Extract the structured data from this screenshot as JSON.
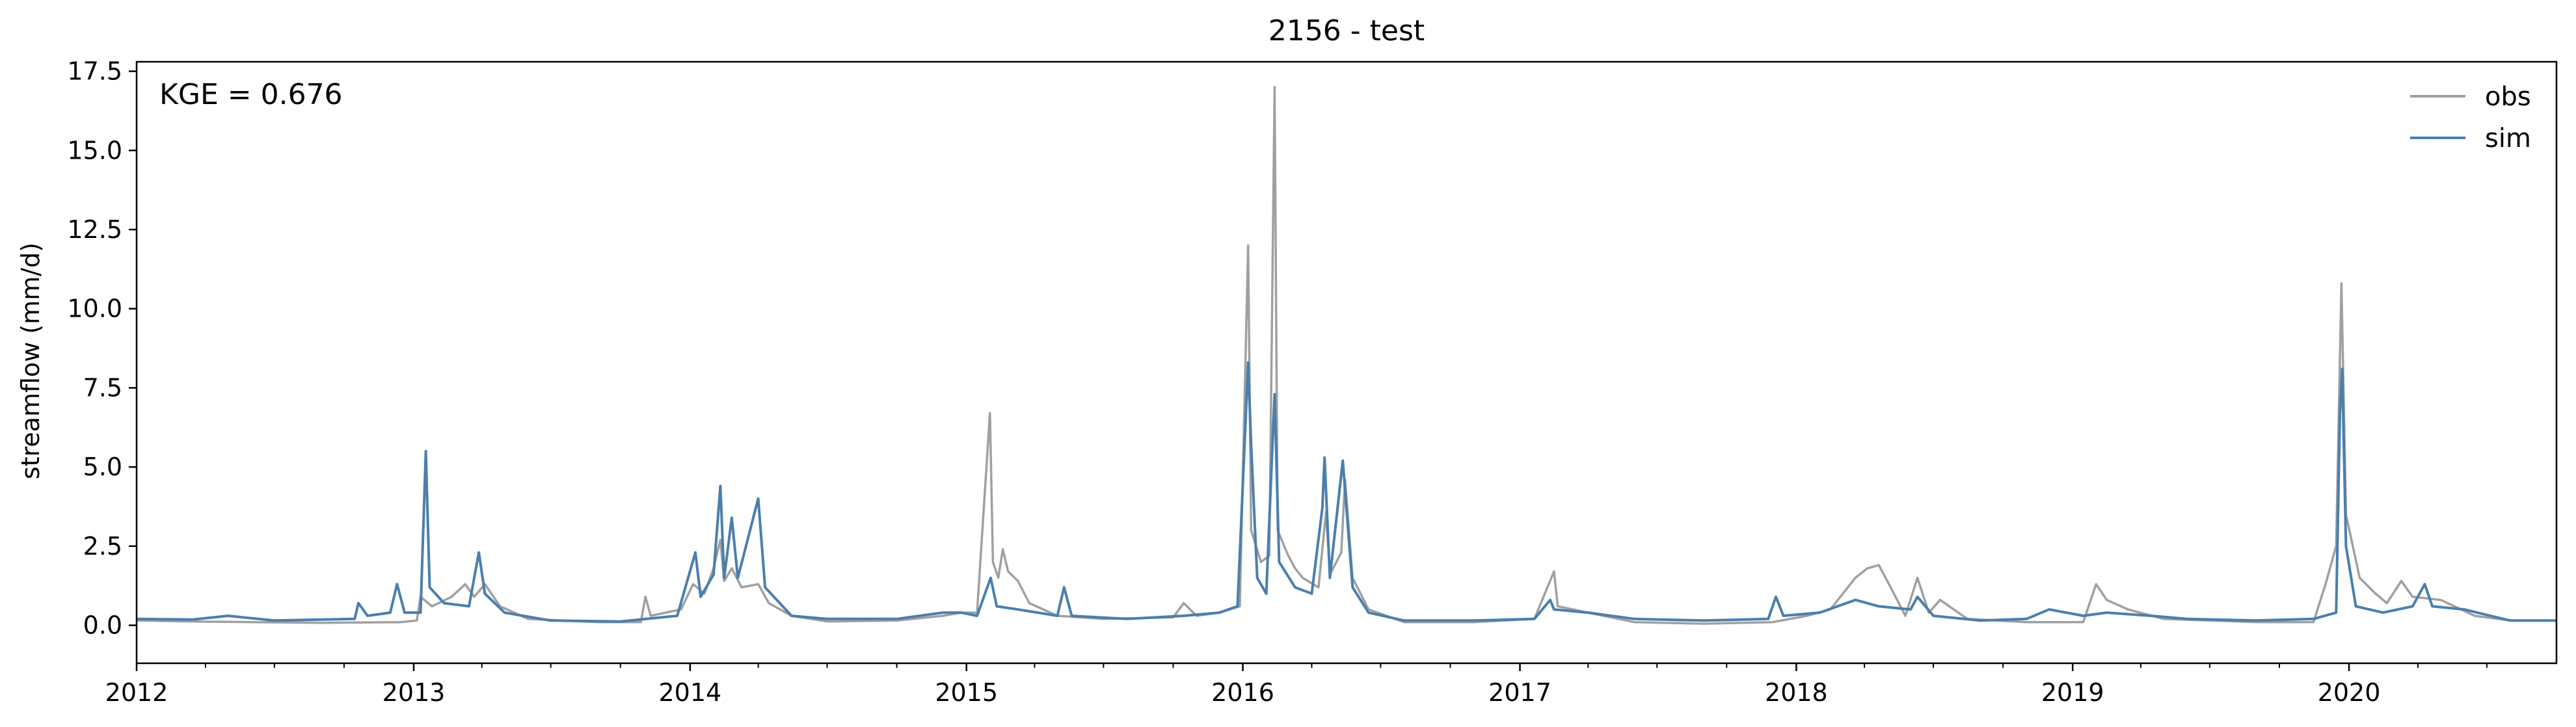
{
  "chart_data": {
    "type": "line",
    "title": "2156 - test",
    "xlabel": "",
    "ylabel": "streamflow (mm/d)",
    "annotation": "KGE = 0.676",
    "xlim": [
      "2012-01-01",
      "2020-10-01"
    ],
    "ylim": [
      -1.2,
      17.8
    ],
    "yticks": [
      0.0,
      2.5,
      5.0,
      7.5,
      10.0,
      12.5,
      15.0,
      17.5
    ],
    "ytick_labels": [
      "0.0",
      "2.5",
      "5.0",
      "7.5",
      "10.0",
      "12.5",
      "15.0",
      "17.5"
    ],
    "xticks": [
      "2012-01-01",
      "2013-01-01",
      "2014-01-01",
      "2015-01-01",
      "2016-01-01",
      "2017-01-01",
      "2018-01-01",
      "2019-01-01",
      "2020-01-01"
    ],
    "xtick_labels": [
      "2012",
      "2013",
      "2014",
      "2015",
      "2016",
      "2017",
      "2018",
      "2019",
      "2020"
    ],
    "grid": false,
    "legend": {
      "position": "top-right",
      "entries": [
        "obs",
        "sim"
      ]
    },
    "series": [
      {
        "name": "obs",
        "color": "#a0a0a0",
        "points": [
          [
            "2012-01-01",
            0.15
          ],
          [
            "2012-03-15",
            0.12
          ],
          [
            "2012-06-01",
            0.1
          ],
          [
            "2012-09-01",
            0.08
          ],
          [
            "2012-12-15",
            0.1
          ],
          [
            "2013-01-05",
            0.15
          ],
          [
            "2013-01-10",
            0.9
          ],
          [
            "2013-01-25",
            0.6
          ],
          [
            "2013-02-20",
            0.9
          ],
          [
            "2013-03-10",
            1.3
          ],
          [
            "2013-03-22",
            0.9
          ],
          [
            "2013-04-05",
            1.3
          ],
          [
            "2013-04-25",
            0.6
          ],
          [
            "2013-06-01",
            0.2
          ],
          [
            "2013-09-01",
            0.1
          ],
          [
            "2013-10-28",
            0.1
          ],
          [
            "2013-11-03",
            0.9
          ],
          [
            "2013-11-10",
            0.3
          ],
          [
            "2013-12-20",
            0.5
          ],
          [
            "2014-01-05",
            1.3
          ],
          [
            "2014-01-20",
            1.0
          ],
          [
            "2014-02-01",
            1.8
          ],
          [
            "2014-02-10",
            2.7
          ],
          [
            "2014-02-15",
            1.4
          ],
          [
            "2014-02-25",
            1.8
          ],
          [
            "2014-03-10",
            1.2
          ],
          [
            "2014-04-01",
            1.3
          ],
          [
            "2014-04-15",
            0.7
          ],
          [
            "2014-05-15",
            0.3
          ],
          [
            "2014-07-01",
            0.12
          ],
          [
            "2014-10-01",
            0.15
          ],
          [
            "2014-12-01",
            0.3
          ],
          [
            "2014-12-25",
            0.4
          ],
          [
            "2015-01-15",
            0.4
          ],
          [
            "2015-02-01",
            6.7
          ],
          [
            "2015-02-05",
            2.0
          ],
          [
            "2015-02-12",
            1.5
          ],
          [
            "2015-02-18",
            2.4
          ],
          [
            "2015-02-25",
            1.7
          ],
          [
            "2015-03-10",
            1.4
          ],
          [
            "2015-03-25",
            0.7
          ],
          [
            "2015-05-01",
            0.3
          ],
          [
            "2015-07-01",
            0.2
          ],
          [
            "2015-10-01",
            0.25
          ],
          [
            "2015-10-15",
            0.7
          ],
          [
            "2015-11-01",
            0.3
          ],
          [
            "2015-12-01",
            0.4
          ],
          [
            "2015-12-28",
            0.6
          ],
          [
            "2016-01-08",
            12.0
          ],
          [
            "2016-01-12",
            3.0
          ],
          [
            "2016-01-25",
            2.0
          ],
          [
            "2016-02-05",
            2.2
          ],
          [
            "2016-02-12",
            17.0
          ],
          [
            "2016-02-16",
            3.0
          ],
          [
            "2016-03-01",
            2.2
          ],
          [
            "2016-03-10",
            1.8
          ],
          [
            "2016-03-20",
            1.5
          ],
          [
            "2016-04-10",
            1.2
          ],
          [
            "2016-04-20",
            3.6
          ],
          [
            "2016-04-25",
            1.6
          ],
          [
            "2016-05-10",
            2.3
          ],
          [
            "2016-05-15",
            4.6
          ],
          [
            "2016-05-25",
            1.5
          ],
          [
            "2016-06-15",
            0.5
          ],
          [
            "2016-08-01",
            0.1
          ],
          [
            "2016-11-01",
            0.1
          ],
          [
            "2017-01-20",
            0.2
          ],
          [
            "2017-02-15",
            1.7
          ],
          [
            "2017-02-20",
            0.6
          ],
          [
            "2017-04-01",
            0.4
          ],
          [
            "2017-06-01",
            0.1
          ],
          [
            "2017-09-01",
            0.05
          ],
          [
            "2017-12-01",
            0.1
          ],
          [
            "2018-01-15",
            0.3
          ],
          [
            "2018-02-15",
            0.5
          ],
          [
            "2018-03-20",
            1.5
          ],
          [
            "2018-04-05",
            1.8
          ],
          [
            "2018-04-20",
            1.9
          ],
          [
            "2018-05-10",
            1.0
          ],
          [
            "2018-05-25",
            0.3
          ],
          [
            "2018-06-10",
            1.5
          ],
          [
            "2018-06-25",
            0.4
          ],
          [
            "2018-07-10",
            0.8
          ],
          [
            "2018-08-15",
            0.2
          ],
          [
            "2018-11-01",
            0.1
          ],
          [
            "2019-01-15",
            0.1
          ],
          [
            "2019-02-01",
            1.3
          ],
          [
            "2019-02-15",
            0.8
          ],
          [
            "2019-03-15",
            0.5
          ],
          [
            "2019-05-01",
            0.2
          ],
          [
            "2019-09-01",
            0.1
          ],
          [
            "2019-11-15",
            0.1
          ],
          [
            "2019-12-01",
            1.3
          ],
          [
            "2019-12-15",
            2.5
          ],
          [
            "2019-12-22",
            10.8
          ],
          [
            "2019-12-28",
            3.5
          ],
          [
            "2020-01-15",
            1.5
          ],
          [
            "2020-02-05",
            1.0
          ],
          [
            "2020-02-20",
            0.7
          ],
          [
            "2020-03-10",
            1.4
          ],
          [
            "2020-03-25",
            0.9
          ],
          [
            "2020-05-01",
            0.8
          ],
          [
            "2020-06-15",
            0.3
          ],
          [
            "2020-08-01",
            0.15
          ],
          [
            "2020-10-01",
            0.15
          ]
        ]
      },
      {
        "name": "sim",
        "color": "#4a7fad",
        "points": [
          [
            "2012-01-01",
            0.2
          ],
          [
            "2012-03-15",
            0.18
          ],
          [
            "2012-05-01",
            0.3
          ],
          [
            "2012-07-01",
            0.15
          ],
          [
            "2012-10-15",
            0.2
          ],
          [
            "2012-10-20",
            0.7
          ],
          [
            "2012-11-01",
            0.3
          ],
          [
            "2012-12-01",
            0.4
          ],
          [
            "2012-12-10",
            1.3
          ],
          [
            "2012-12-20",
            0.4
          ],
          [
            "2013-01-10",
            0.4
          ],
          [
            "2013-01-17",
            5.5
          ],
          [
            "2013-01-22",
            1.2
          ],
          [
            "2013-02-10",
            0.7
          ],
          [
            "2013-03-15",
            0.6
          ],
          [
            "2013-03-28",
            2.3
          ],
          [
            "2013-04-05",
            1.0
          ],
          [
            "2013-05-01",
            0.4
          ],
          [
            "2013-07-01",
            0.15
          ],
          [
            "2013-10-01",
            0.12
          ],
          [
            "2013-12-15",
            0.3
          ],
          [
            "2014-01-08",
            2.3
          ],
          [
            "2014-01-15",
            0.9
          ],
          [
            "2014-02-01",
            1.6
          ],
          [
            "2014-02-10",
            4.4
          ],
          [
            "2014-02-15",
            1.5
          ],
          [
            "2014-02-25",
            3.4
          ],
          [
            "2014-03-05",
            1.5
          ],
          [
            "2014-04-01",
            4.0
          ],
          [
            "2014-04-10",
            1.2
          ],
          [
            "2014-05-15",
            0.3
          ],
          [
            "2014-07-01",
            0.2
          ],
          [
            "2014-10-01",
            0.2
          ],
          [
            "2014-12-01",
            0.4
          ],
          [
            "2014-12-25",
            0.4
          ],
          [
            "2015-01-15",
            0.3
          ],
          [
            "2015-02-02",
            1.5
          ],
          [
            "2015-02-10",
            0.6
          ],
          [
            "2015-03-10",
            0.5
          ],
          [
            "2015-05-01",
            0.3
          ],
          [
            "2015-05-10",
            1.2
          ],
          [
            "2015-05-20",
            0.3
          ],
          [
            "2015-08-01",
            0.2
          ],
          [
            "2015-10-15",
            0.3
          ],
          [
            "2015-12-01",
            0.4
          ],
          [
            "2015-12-25",
            0.6
          ],
          [
            "2016-01-08",
            8.3
          ],
          [
            "2016-01-12",
            5.7
          ],
          [
            "2016-01-20",
            1.5
          ],
          [
            "2016-02-01",
            1.0
          ],
          [
            "2016-02-12",
            7.3
          ],
          [
            "2016-02-18",
            2.0
          ],
          [
            "2016-03-10",
            1.2
          ],
          [
            "2016-04-01",
            1.0
          ],
          [
            "2016-04-15",
            3.7
          ],
          [
            "2016-04-18",
            5.3
          ],
          [
            "2016-04-25",
            1.5
          ],
          [
            "2016-05-12",
            5.2
          ],
          [
            "2016-05-25",
            1.2
          ],
          [
            "2016-06-15",
            0.4
          ],
          [
            "2016-08-01",
            0.15
          ],
          [
            "2016-11-01",
            0.15
          ],
          [
            "2017-01-20",
            0.2
          ],
          [
            "2017-02-10",
            0.8
          ],
          [
            "2017-02-15",
            0.5
          ],
          [
            "2017-04-01",
            0.4
          ],
          [
            "2017-06-01",
            0.2
          ],
          [
            "2017-09-01",
            0.15
          ],
          [
            "2017-11-25",
            0.2
          ],
          [
            "2017-12-05",
            0.9
          ],
          [
            "2017-12-15",
            0.3
          ],
          [
            "2018-02-01",
            0.4
          ],
          [
            "2018-03-20",
            0.8
          ],
          [
            "2018-04-20",
            0.6
          ],
          [
            "2018-06-01",
            0.5
          ],
          [
            "2018-06-10",
            0.9
          ],
          [
            "2018-07-01",
            0.3
          ],
          [
            "2018-09-01",
            0.15
          ],
          [
            "2018-11-01",
            0.2
          ],
          [
            "2018-12-01",
            0.5
          ],
          [
            "2019-01-15",
            0.3
          ],
          [
            "2019-02-15",
            0.4
          ],
          [
            "2019-04-15",
            0.3
          ],
          [
            "2019-06-01",
            0.2
          ],
          [
            "2019-09-01",
            0.15
          ],
          [
            "2019-11-15",
            0.2
          ],
          [
            "2019-12-15",
            0.4
          ],
          [
            "2019-12-20",
            6.7
          ],
          [
            "2019-12-23",
            8.1
          ],
          [
            "2019-12-28",
            2.5
          ],
          [
            "2020-01-10",
            0.6
          ],
          [
            "2020-02-15",
            0.4
          ],
          [
            "2020-03-25",
            0.6
          ],
          [
            "2020-04-10",
            1.3
          ],
          [
            "2020-04-20",
            0.6
          ],
          [
            "2020-06-01",
            0.5
          ],
          [
            "2020-08-01",
            0.15
          ],
          [
            "2020-10-01",
            0.15
          ]
        ]
      }
    ]
  }
}
